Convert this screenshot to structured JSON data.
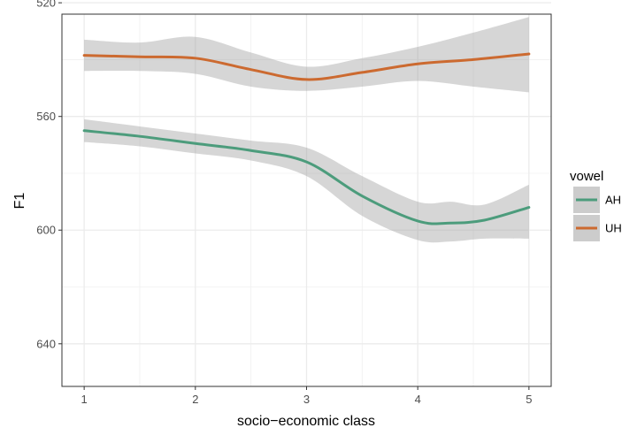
{
  "chart_data": {
    "type": "line",
    "title": "",
    "xlabel": "socio−economic class",
    "ylabel": "F1",
    "xlim": [
      0.8,
      5.2
    ],
    "ylim": [
      524,
      655
    ],
    "y_reversed": true,
    "x_ticks": [
      1,
      2,
      3,
      4,
      5
    ],
    "x_tick_labels": [
      "1",
      "2",
      "3",
      "4",
      "5"
    ],
    "y_ticks": [
      520,
      560,
      600,
      640
    ],
    "y_tick_labels": [
      "520",
      "560",
      "600",
      "640"
    ],
    "grid": true,
    "legend": {
      "title": "vowel",
      "placement": "right"
    },
    "series": [
      {
        "name": "AH",
        "color": "#4c9c7c",
        "x": [
          1,
          1.5,
          2,
          2.5,
          3,
          3.5,
          4,
          4.3,
          4.6,
          5
        ],
        "y": [
          565,
          567,
          569.5,
          572,
          576,
          588,
          596.8,
          597.5,
          596.5,
          592
        ],
        "lower": [
          561,
          563.5,
          566,
          568.5,
          571,
          581,
          590,
          590,
          591,
          584
        ],
        "upper": [
          569,
          570.5,
          573,
          575.5,
          581,
          595,
          603.5,
          604,
          603,
          603
        ]
      },
      {
        "name": "UH",
        "color": "#cc6a30",
        "x": [
          1,
          1.5,
          2,
          2.5,
          3,
          3.5,
          4,
          4.5,
          5
        ],
        "y": [
          538.5,
          539,
          539.5,
          543.5,
          547,
          544.5,
          541.5,
          540,
          538
        ],
        "lower": [
          533,
          534,
          532,
          537.5,
          542.5,
          539.5,
          535.5,
          530.5,
          525
        ],
        "upper": [
          544,
          544,
          545,
          549.5,
          551,
          549.5,
          547.5,
          549.5,
          551.5
        ]
      }
    ]
  }
}
